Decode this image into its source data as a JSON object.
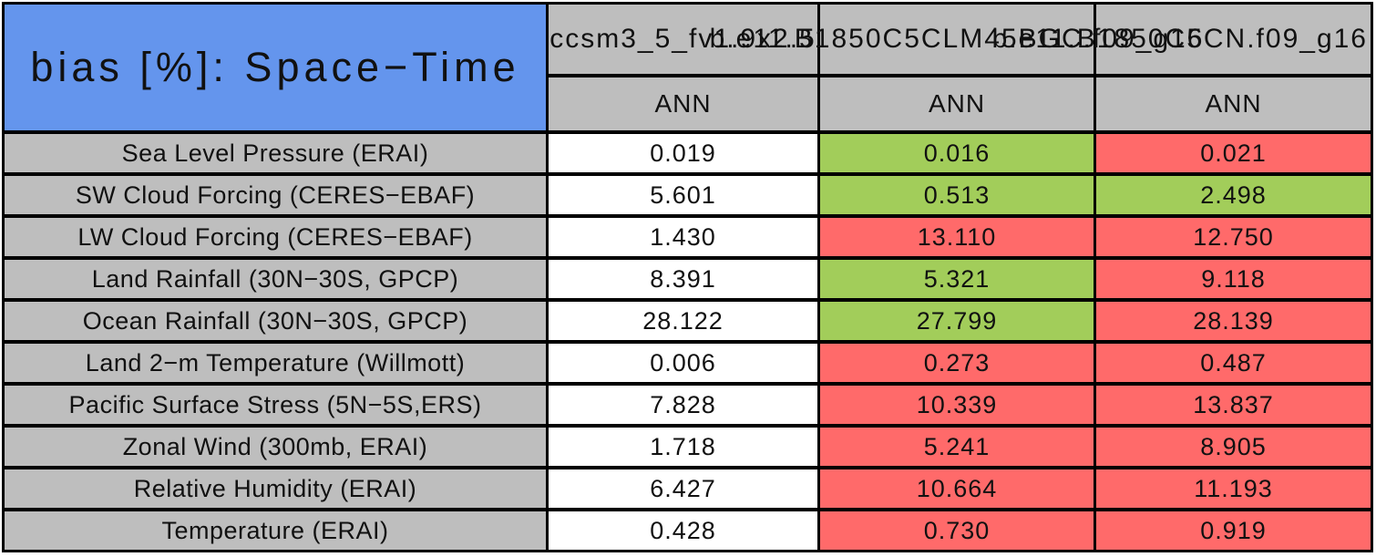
{
  "chart_data": {
    "type": "table",
    "title": "bias [%]: Space−Time",
    "columns": [
      {
        "model": "ccsm3_5_fv1.9x2.5",
        "season": "ANN"
      },
      {
        "model": "b.e11.B1850C5CLM45BGC.f09_g16",
        "season": "ANN"
      },
      {
        "model": "b.e11.B1850C5CN.f09_g16",
        "season": "ANN"
      }
    ],
    "rows": [
      {
        "label": "Sea Level Pressure (ERAI)",
        "values": [
          "0.019",
          "0.016",
          "0.021"
        ],
        "cell_colors": [
          "white",
          "green",
          "red"
        ]
      },
      {
        "label": "SW Cloud Forcing (CERES−EBAF)",
        "values": [
          "5.601",
          "0.513",
          "2.498"
        ],
        "cell_colors": [
          "white",
          "green",
          "green"
        ]
      },
      {
        "label": "LW Cloud Forcing (CERES−EBAF)",
        "values": [
          "1.430",
          "13.110",
          "12.750"
        ],
        "cell_colors": [
          "white",
          "red",
          "red"
        ]
      },
      {
        "label": "Land Rainfall (30N−30S, GPCP)",
        "values": [
          "8.391",
          "5.321",
          "9.118"
        ],
        "cell_colors": [
          "white",
          "green",
          "red"
        ]
      },
      {
        "label": "Ocean Rainfall (30N−30S, GPCP)",
        "values": [
          "28.122",
          "27.799",
          "28.139"
        ],
        "cell_colors": [
          "white",
          "green",
          "red"
        ]
      },
      {
        "label": "Land 2−m Temperature (Willmott)",
        "values": [
          "0.006",
          "0.273",
          "0.487"
        ],
        "cell_colors": [
          "white",
          "red",
          "red"
        ]
      },
      {
        "label": "Pacific Surface Stress (5N−5S,ERS)",
        "values": [
          "7.828",
          "10.339",
          "13.837"
        ],
        "cell_colors": [
          "white",
          "red",
          "red"
        ]
      },
      {
        "label": "Zonal Wind (300mb, ERAI)",
        "values": [
          "1.718",
          "5.241",
          "8.905"
        ],
        "cell_colors": [
          "white",
          "red",
          "red"
        ]
      },
      {
        "label": "Relative Humidity (ERAI)",
        "values": [
          "6.427",
          "10.664",
          "11.193"
        ],
        "cell_colors": [
          "white",
          "red",
          "red"
        ]
      },
      {
        "label": "Temperature (ERAI)",
        "values": [
          "0.428",
          "0.730",
          "0.919"
        ],
        "cell_colors": [
          "white",
          "red",
          "red"
        ]
      }
    ],
    "layout": {
      "grid": "on",
      "title_cell_color": "#6495ed",
      "header_and_label_color": "#bebebe",
      "good_cell_color": "#a2cd5a",
      "bad_cell_color": "#ff6a6a",
      "neutral_cell_color": "#ffffff",
      "border_color": "#000000"
    }
  }
}
